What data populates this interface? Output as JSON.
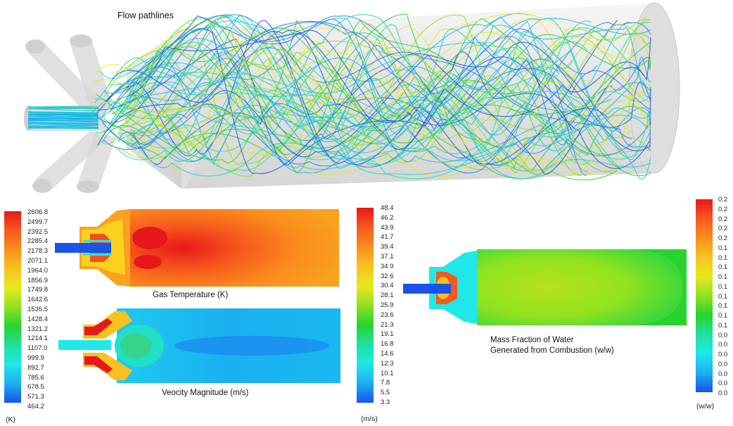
{
  "top_title": "Flow pathlines",
  "temperature": {
    "caption": "Gas Temperature (K)",
    "unit": "(K)",
    "ticks": [
      "2606.8",
      "2499.7",
      "2392.5",
      "2285.4",
      "2178.3",
      "2071.1",
      "1964.0",
      "1856.9",
      "1749.8",
      "1642.6",
      "1535.5",
      "1428.4",
      "1321.2",
      "1214.1",
      "1107.0",
      "999.9",
      "892.7",
      "785.6",
      "678.5",
      "571.3",
      "464.2"
    ]
  },
  "velocity": {
    "caption": "Veocity Magnitude (m/s)",
    "unit": "(m/s)",
    "ticks": [
      "48.4",
      "46.2",
      "43.9",
      "41.7",
      "39.4",
      "37.1",
      "34.9",
      "32.6",
      "30.4",
      "28.1",
      "25.9",
      "23.6",
      "21.3",
      "19.1",
      "16.8",
      "14.6",
      "12.3",
      "10.1",
      "7.8",
      "5.5",
      "3.3"
    ]
  },
  "water": {
    "caption_line1": "Mass Fraction of Water",
    "caption_line2": "Generated from Combustion (w/w)",
    "unit": "(w/w)",
    "ticks": [
      "0.2",
      "0.2",
      "0.2",
      "0.2",
      "0.2",
      "0.1",
      "0.1",
      "0.1",
      "0.1",
      "0.1",
      "0.1",
      "0.1",
      "0.1",
      "0.1",
      "0.0",
      "0.0",
      "0.0",
      "0.0",
      "0.0",
      "0.0",
      "0.0"
    ]
  },
  "colors": {
    "rainbow": [
      "#e8171b",
      "#f6591c",
      "#fa8d1e",
      "#f7c21f",
      "#e8e81f",
      "#8fe21f",
      "#27d42e",
      "#1fe0a0",
      "#20e8e8",
      "#1ab0f0",
      "#1a52ea"
    ]
  }
}
